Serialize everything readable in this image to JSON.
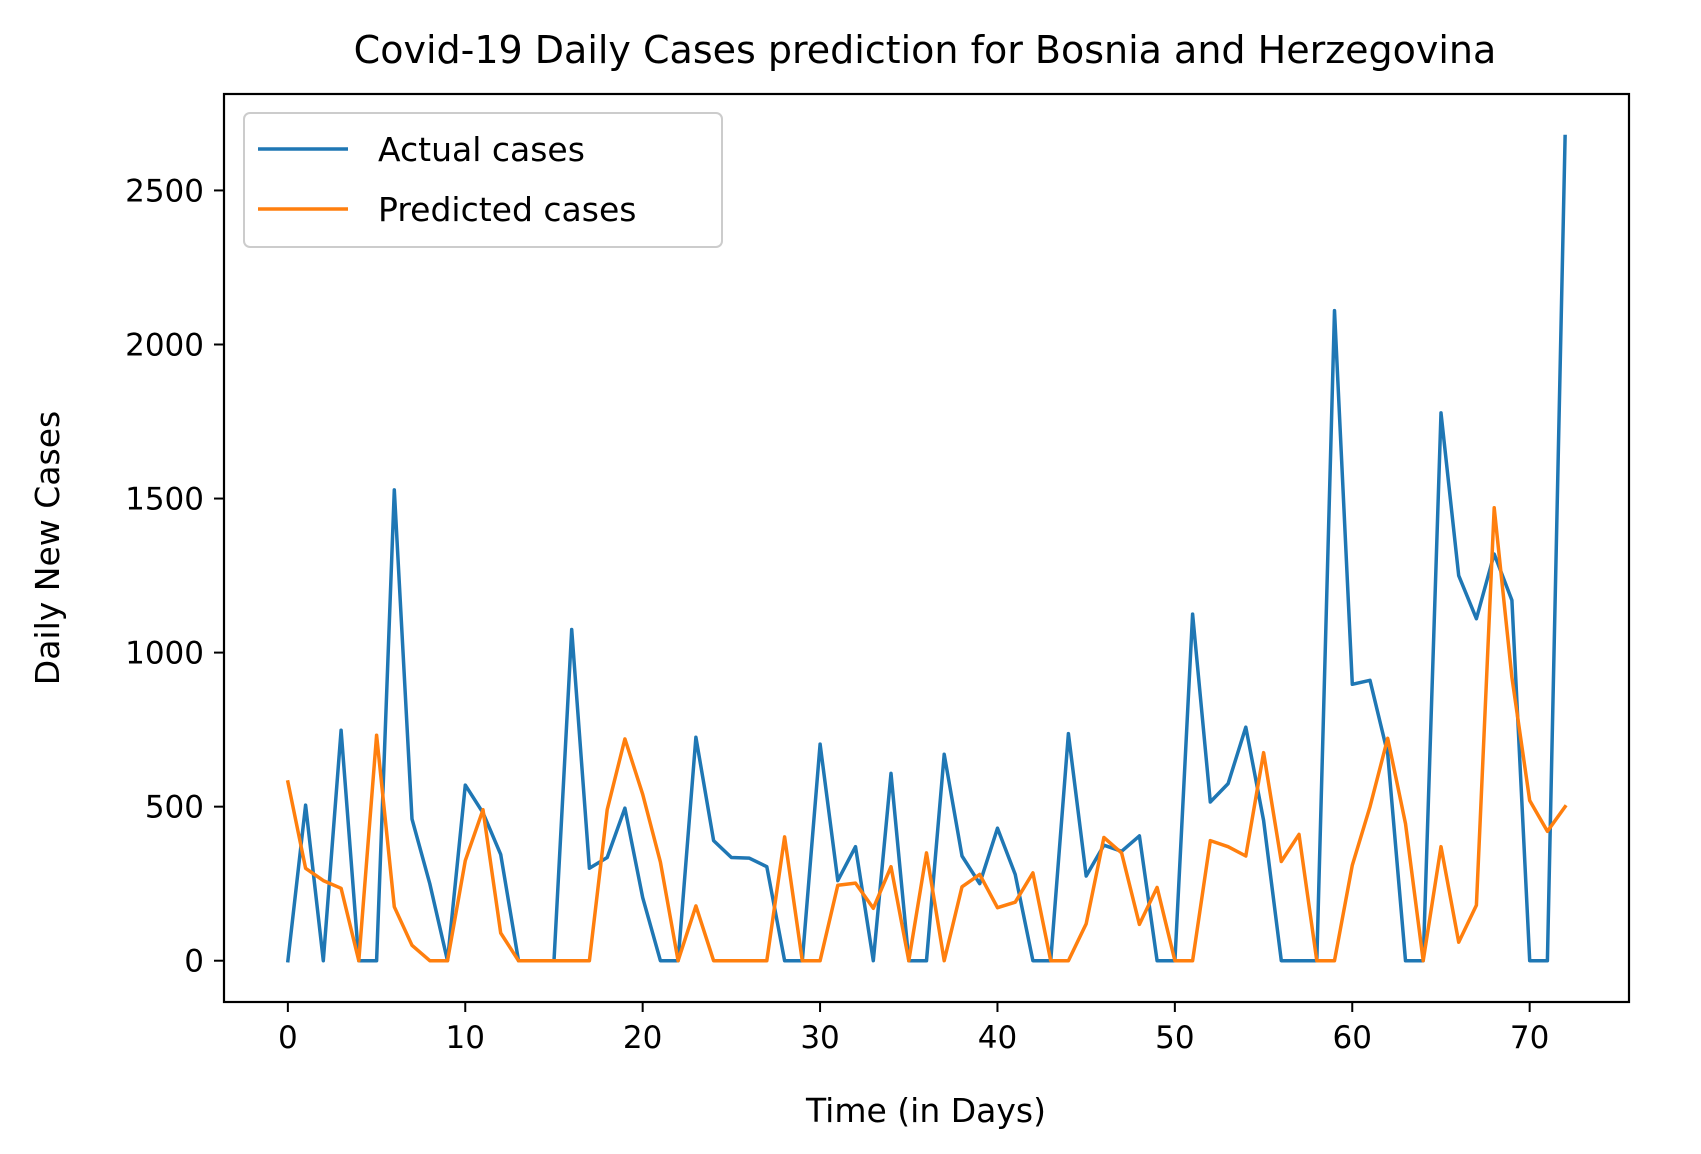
{
  "chart_data": {
    "type": "line",
    "title": "Covid-19 Daily Cases prediction for Bosnia and Herzegovina",
    "xlabel": "Time (in Days)",
    "ylabel": "Daily New Cases",
    "xlim": [
      -3.6,
      75.6
    ],
    "ylim": [
      -134,
      2813
    ],
    "xticks": [
      0,
      10,
      20,
      30,
      40,
      50,
      60,
      70
    ],
    "yticks": [
      0,
      500,
      1000,
      1500,
      2000,
      2500
    ],
    "grid": false,
    "legend_position": "top-left",
    "x": [
      0,
      1,
      2,
      3,
      4,
      5,
      6,
      7,
      8,
      9,
      10,
      11,
      12,
      13,
      14,
      15,
      16,
      17,
      18,
      19,
      20,
      21,
      22,
      23,
      24,
      25,
      26,
      27,
      28,
      29,
      30,
      31,
      32,
      33,
      34,
      35,
      36,
      37,
      38,
      39,
      40,
      41,
      42,
      43,
      44,
      45,
      46,
      47,
      48,
      49,
      50,
      51,
      52,
      53,
      54,
      55,
      56,
      57,
      58,
      59,
      60,
      61,
      62,
      63,
      64,
      65,
      66,
      67,
      68,
      69,
      70,
      71,
      72
    ],
    "series": [
      {
        "name": "Actual cases",
        "color": "#1f77b4",
        "values": [
          0,
          505,
          0,
          748,
          0,
          0,
          1528,
          460,
          250,
          0,
          570,
          480,
          345,
          0,
          0,
          0,
          1075,
          300,
          335,
          495,
          205,
          0,
          0,
          725,
          390,
          335,
          333,
          305,
          0,
          0,
          703,
          260,
          370,
          0,
          608,
          0,
          0,
          670,
          340,
          250,
          430,
          280,
          0,
          0,
          737,
          275,
          375,
          355,
          405,
          0,
          0,
          1125,
          515,
          575,
          758,
          455,
          0,
          0,
          0,
          2110,
          897,
          910,
          672,
          0,
          0,
          1778,
          1250,
          1110,
          1320,
          1170,
          0,
          0,
          2675
        ]
      },
      {
        "name": "Predicted cases",
        "color": "#ff7f0e",
        "values": [
          580,
          300,
          260,
          235,
          0,
          732,
          175,
          50,
          0,
          0,
          325,
          490,
          90,
          0,
          0,
          0,
          0,
          0,
          490,
          720,
          540,
          320,
          0,
          178,
          0,
          0,
          0,
          0,
          402,
          0,
          0,
          245,
          252,
          170,
          305,
          0,
          350,
          0,
          240,
          280,
          172,
          190,
          285,
          0,
          0,
          120,
          400,
          350,
          118,
          238,
          0,
          0,
          390,
          370,
          340,
          675,
          322,
          410,
          0,
          0,
          310,
          500,
          722,
          445,
          0,
          370,
          60,
          180,
          1470,
          920,
          520,
          420,
          500
        ]
      }
    ]
  }
}
